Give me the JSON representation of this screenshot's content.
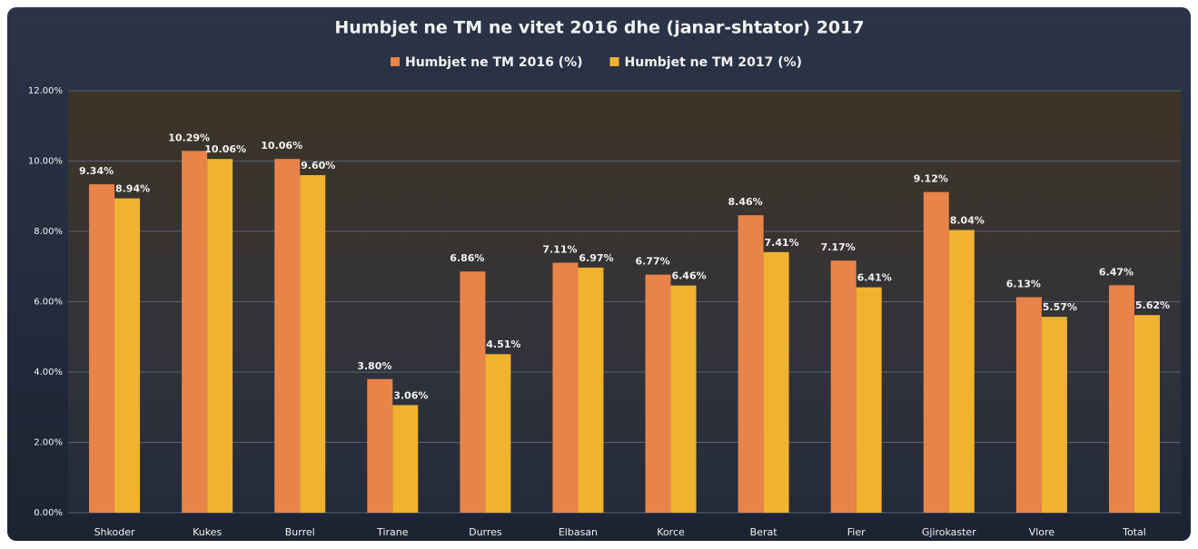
{
  "chart_data": {
    "type": "bar",
    "title": "Humbjet ne TM ne vitet 2016 dhe (janar-shtator) 2017",
    "categories": [
      "Shkoder",
      "Kukes",
      "Burrel",
      "Tirane",
      "Durres",
      "Elbasan",
      "Korce",
      "Berat",
      "Fier",
      "Gjirokaster",
      "Vlore",
      "Total"
    ],
    "series": [
      {
        "name": "Humbjet ne TM 2016 (%)",
        "color": "#e8844a",
        "values": [
          9.34,
          10.29,
          10.06,
          3.8,
          6.86,
          7.11,
          6.77,
          8.46,
          7.17,
          9.12,
          6.13,
          6.47
        ],
        "value_labels": [
          "9.34%",
          "10.29%",
          "10.06%",
          "3.80%",
          "6.86%",
          "7.11%",
          "6.77%",
          "8.46%",
          "7.17%",
          "9.12%",
          "6.13%",
          "6.47%"
        ]
      },
      {
        "name": "Humbjet ne TM 2017 (%)",
        "color": "#f0b330",
        "values": [
          8.94,
          10.06,
          9.6,
          3.06,
          4.51,
          6.97,
          6.46,
          7.41,
          6.41,
          8.04,
          5.57,
          5.62
        ],
        "value_labels": [
          "8.94%",
          "10.06%",
          "9.60%",
          "3.06%",
          "4.51%",
          "6.97%",
          "6.46%",
          "7.41%",
          "6.41%",
          "8.04%",
          "5.57%",
          "5.62%"
        ]
      }
    ],
    "ylim": [
      0,
      12
    ],
    "yticks": [
      {
        "value": 0,
        "label": "0.00%"
      },
      {
        "value": 2,
        "label": "2.00%"
      },
      {
        "value": 4,
        "label": "4.00%"
      },
      {
        "value": 6,
        "label": "6.00%"
      },
      {
        "value": 8,
        "label": "8.00%"
      },
      {
        "value": 10,
        "label": "10.00%"
      },
      {
        "value": 12,
        "label": "12.00%"
      }
    ],
    "grid": true,
    "legend": "top"
  }
}
